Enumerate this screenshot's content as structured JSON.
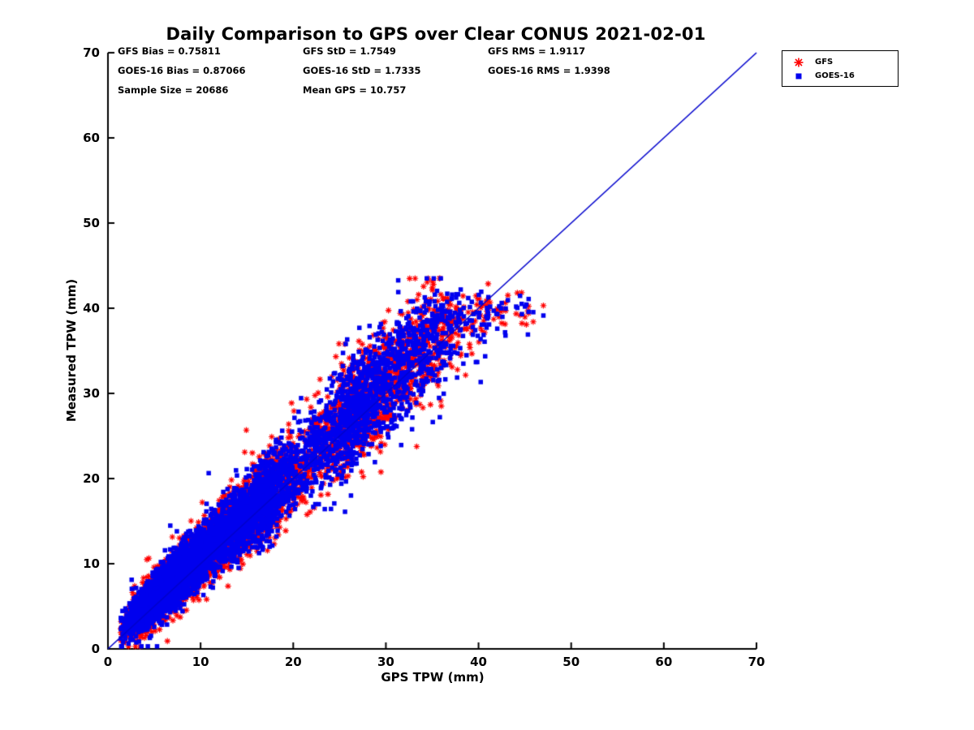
{
  "stats": {
    "rows": [
      [
        "GFS Bias = 0.75811",
        "GFS StD = 1.7549",
        "GFS RMS = 1.9117"
      ],
      [
        "GOES-16 Bias = 0.87066",
        "GOES-16 StD = 1.7335",
        "GOES-16 RMS = 1.9398"
      ],
      [
        "Sample Size = 20686",
        "Mean GPS = 10.757"
      ]
    ]
  },
  "chart_data": {
    "type": "scatter",
    "title": "Daily Comparison to GPS over Clear CONUS 2021-02-01",
    "xlabel": "GPS TPW (mm)",
    "ylabel": "Measured TPW (mm)",
    "xlim": [
      0,
      70
    ],
    "ylim": [
      0,
      70
    ],
    "xticks": [
      0,
      10,
      20,
      30,
      40,
      50,
      60,
      70
    ],
    "yticks": [
      0,
      10,
      20,
      30,
      40,
      50,
      60,
      70
    ],
    "grid": false,
    "legend_position": "top-right-outside",
    "identity_line": {
      "x": [
        0,
        70
      ],
      "y": [
        0,
        70
      ],
      "color": "#0000cc"
    },
    "series": [
      {
        "name": "GFS",
        "marker": "asterisk",
        "color": "#ff0000",
        "bias": 0.75811,
        "std": 1.7549,
        "rms": 1.9117
      },
      {
        "name": "GOES-16",
        "marker": "square",
        "color": "#0000ee",
        "bias": 0.87066,
        "std": 1.7335,
        "rms": 1.9398
      }
    ],
    "sample_size": 20686,
    "mean_gps": 10.757,
    "x_observed_range": [
      1,
      47
    ],
    "y_observed_range": [
      1,
      42
    ],
    "pattern": "points lie along y = x + bias; very dense cluster 1-18 mm, secondary cluster 21-38 mm, flattening near 37-41 mm for x > 38"
  }
}
